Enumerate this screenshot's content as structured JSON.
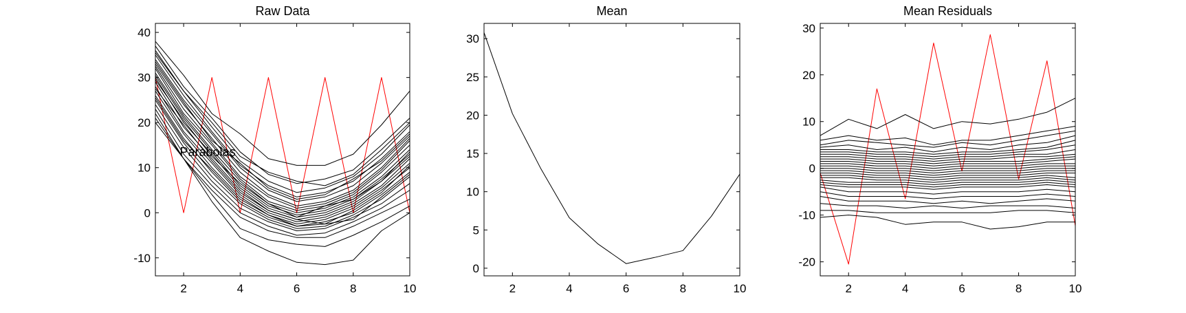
{
  "chart_data": [
    {
      "type": "line",
      "title": "Raw Data",
      "xlim": [
        1,
        10
      ],
      "ylim": [
        -14,
        42
      ],
      "xticks": [
        2,
        4,
        6,
        8,
        10
      ],
      "yticks": [
        -10,
        0,
        10,
        20,
        30,
        40
      ],
      "grid": false,
      "annotations": [
        {
          "text": "Parabolas",
          "x": 2.85,
          "y": 13.5
        }
      ],
      "x": [
        1,
        2,
        3,
        4,
        5,
        6,
        7,
        8,
        9,
        10
      ],
      "series": [
        {
          "color": "#ff0000",
          "values": [
            30,
            0,
            30,
            0,
            30,
            0,
            30,
            0,
            30,
            0
          ]
        },
        {
          "color": "#000000",
          "values": [
            38,
            30.5,
            22,
            17.5,
            12,
            10.5,
            10.5,
            13,
            19.5,
            27
          ]
        },
        {
          "color": "#000000",
          "values": [
            37,
            28,
            21,
            13.5,
            8.5,
            6.5,
            7.5,
            9.5,
            15,
            21
          ]
        },
        {
          "color": "#000000",
          "values": [
            36,
            27,
            19,
            11.5,
            7,
            4.5,
            5.5,
            8,
            13,
            19.5
          ]
        },
        {
          "color": "#000000",
          "values": [
            35,
            26,
            18,
            10.5,
            6,
            3.5,
            4.5,
            7,
            12,
            18
          ]
        },
        {
          "color": "#000000",
          "values": [
            34,
            25,
            17.5,
            10,
            5,
            2.5,
            3.5,
            6,
            11,
            17
          ]
        },
        {
          "color": "#000000",
          "values": [
            33,
            24,
            16.5,
            9,
            4,
            1.5,
            2.5,
            5,
            10,
            16.5
          ]
        },
        {
          "color": "#000000",
          "values": [
            32.5,
            23,
            15.5,
            8,
            3.5,
            1,
            2,
            4.5,
            9.5,
            16
          ]
        },
        {
          "color": "#000000",
          "values": [
            32,
            22,
            15,
            7.5,
            2.5,
            0.5,
            1.5,
            4,
            9,
            15
          ]
        },
        {
          "color": "#000000",
          "values": [
            31,
            21.5,
            14,
            7,
            2,
            0,
            1,
            3.5,
            8,
            14
          ]
        },
        {
          "color": "#000000",
          "values": [
            30.5,
            21,
            13.5,
            6,
            1.5,
            -0.5,
            0.5,
            3,
            7.5,
            13
          ]
        },
        {
          "color": "#000000",
          "values": [
            30,
            20,
            13,
            5.5,
            1,
            -1,
            0,
            2.5,
            7,
            12.5
          ]
        },
        {
          "color": "#000000",
          "values": [
            29,
            19,
            12,
            5,
            0.5,
            -1.5,
            -0.5,
            2,
            6,
            12
          ]
        },
        {
          "color": "#000000",
          "values": [
            28,
            18,
            11,
            4,
            0,
            -2,
            -1,
            1.5,
            5.5,
            11
          ]
        },
        {
          "color": "#000000",
          "values": [
            27,
            17.5,
            10,
            3.5,
            -0.5,
            -2.5,
            -1.5,
            1,
            5,
            10
          ]
        },
        {
          "color": "#000000",
          "values": [
            26,
            16.5,
            9,
            2.5,
            -1,
            -3,
            -2,
            0,
            4,
            9
          ]
        },
        {
          "color": "#000000",
          "values": [
            25,
            15.5,
            8,
            2,
            -1.5,
            -3.5,
            -3,
            -0.5,
            3,
            8
          ]
        },
        {
          "color": "#000000",
          "values": [
            24,
            14.5,
            7,
            1,
            -2,
            -4,
            -3.5,
            -1,
            2,
            6.5
          ]
        },
        {
          "color": "#000000",
          "values": [
            23,
            13,
            6,
            0,
            -3,
            -5,
            -4.5,
            -2,
            1,
            5
          ]
        },
        {
          "color": "#000000",
          "values": [
            22,
            12,
            5,
            -1,
            -4,
            -5.5,
            -5.5,
            -3,
            0,
            3
          ]
        },
        {
          "color": "#000000",
          "values": [
            21,
            12,
            4,
            -3.5,
            -6,
            -7,
            -7.5,
            -5,
            -2,
            1.5
          ]
        },
        {
          "color": "#000000",
          "values": [
            20,
            12,
            2.5,
            -5.5,
            -8.5,
            -11,
            -11.5,
            -10.5,
            -4,
            0
          ]
        },
        {
          "color": "#000000",
          "values": [
            35.5,
            27,
            20,
            12.5,
            9,
            7,
            6,
            8.5,
            14,
            20
          ]
        },
        {
          "color": "#000000",
          "values": [
            33.5,
            24.5,
            16,
            11,
            5.5,
            3,
            4,
            7.5,
            11.5,
            17.5
          ]
        },
        {
          "color": "#000000",
          "values": [
            29.5,
            20.5,
            12.5,
            6.5,
            2,
            -1,
            1.5,
            3,
            7,
            13.5
          ]
        },
        {
          "color": "#000000",
          "values": [
            27.5,
            19.5,
            11.5,
            4.5,
            0.5,
            -1.5,
            -2.5,
            0.5,
            4.5,
            10.5
          ]
        },
        {
          "color": "#000000",
          "values": [
            25.5,
            16,
            9.5,
            3,
            -0.5,
            -3,
            -2.5,
            -1.5,
            3.5,
            8.5
          ]
        }
      ]
    },
    {
      "type": "line",
      "title": "Mean",
      "xlim": [
        1,
        10
      ],
      "ylim": [
        -1,
        32
      ],
      "xticks": [
        2,
        4,
        6,
        8,
        10
      ],
      "yticks": [
        0,
        5,
        10,
        15,
        20,
        25,
        30
      ],
      "grid": false,
      "x": [
        1,
        2,
        3,
        4,
        5,
        6,
        7,
        8,
        9,
        10
      ],
      "series": [
        {
          "color": "#000000",
          "values": [
            30.8,
            20.2,
            13,
            6.6,
            3.2,
            0.6,
            1.4,
            2.3,
            6.8,
            12.3
          ]
        }
      ]
    },
    {
      "type": "line",
      "title": "Mean Residuals",
      "xlim": [
        1,
        10
      ],
      "ylim": [
        -23,
        31
      ],
      "xticks": [
        2,
        4,
        6,
        8,
        10
      ],
      "yticks": [
        -20,
        -10,
        0,
        10,
        20,
        30
      ],
      "grid": false,
      "x": [
        1,
        2,
        3,
        4,
        5,
        6,
        7,
        8,
        9,
        10
      ],
      "series": [
        {
          "color": "#ff0000",
          "values": [
            -1,
            -20.5,
            17,
            -6.5,
            26.8,
            -0.6,
            28.6,
            -2.3,
            23,
            -12.3
          ]
        },
        {
          "color": "#000000",
          "values": [
            7,
            10.5,
            8.5,
            11.5,
            8.5,
            10,
            9.5,
            10.5,
            12,
            15
          ]
        },
        {
          "color": "#000000",
          "values": [
            6,
            7,
            6,
            6.5,
            5,
            6,
            6,
            7,
            8,
            9
          ]
        },
        {
          "color": "#000000",
          "values": [
            5,
            6,
            5.5,
            5,
            4.5,
            5.5,
            5,
            6,
            7,
            8
          ]
        },
        {
          "color": "#000000",
          "values": [
            4.5,
            5,
            4,
            4.5,
            3.5,
            4.5,
            4,
            5,
            5.5,
            7
          ]
        },
        {
          "color": "#000000",
          "values": [
            4,
            4,
            3.5,
            3.5,
            3,
            3.5,
            3.5,
            4,
            4.5,
            6
          ]
        },
        {
          "color": "#000000",
          "values": [
            3.5,
            3.5,
            3,
            3,
            2.5,
            3,
            3,
            3.5,
            4,
            5
          ]
        },
        {
          "color": "#000000",
          "values": [
            3,
            3,
            2.5,
            2.5,
            2,
            2.5,
            2.5,
            3,
            3,
            4
          ]
        },
        {
          "color": "#000000",
          "values": [
            2.5,
            2.5,
            2,
            2,
            1.5,
            2,
            2,
            2.5,
            2.5,
            3
          ]
        },
        {
          "color": "#000000",
          "values": [
            2,
            2,
            1.5,
            1.5,
            1,
            1.5,
            1.5,
            1.5,
            2,
            2.5
          ]
        },
        {
          "color": "#000000",
          "values": [
            1.5,
            1.5,
            1,
            1,
            0.5,
            1,
            1,
            1,
            1.5,
            2
          ]
        },
        {
          "color": "#000000",
          "values": [
            1,
            1,
            0.5,
            0.5,
            0,
            0.5,
            0.5,
            0.5,
            1,
            1
          ]
        },
        {
          "color": "#000000",
          "values": [
            0.5,
            0.5,
            0,
            0,
            -0.5,
            0,
            0,
            0,
            0.5,
            0.5
          ]
        },
        {
          "color": "#000000",
          "values": [
            0,
            0,
            -0.5,
            -0.5,
            -1,
            -0.5,
            -0.5,
            -0.5,
            0,
            0
          ]
        },
        {
          "color": "#000000",
          "values": [
            -0.5,
            -0.5,
            -1,
            -1,
            -1.5,
            -1,
            -1,
            -1,
            -0.5,
            -0.5
          ]
        },
        {
          "color": "#000000",
          "values": [
            -1,
            -1,
            -1.5,
            -1.5,
            -2,
            -1.5,
            -1.5,
            -1.5,
            -1,
            -1
          ]
        },
        {
          "color": "#000000",
          "values": [
            -1.5,
            -1.5,
            -2,
            -2,
            -2.5,
            -2,
            -2,
            -2,
            -1.5,
            -2
          ]
        },
        {
          "color": "#000000",
          "values": [
            -2,
            -2,
            -2.5,
            -2.5,
            -3,
            -2.5,
            -2.5,
            -2.5,
            -2,
            -2.5
          ]
        },
        {
          "color": "#000000",
          "values": [
            -2.5,
            -3,
            -3,
            -3,
            -3.5,
            -3,
            -3,
            -3,
            -2.5,
            -3
          ]
        },
        {
          "color": "#000000",
          "values": [
            -3,
            -3.5,
            -3.5,
            -3.5,
            -4,
            -3.5,
            -3.5,
            -3.5,
            -3,
            -3.5
          ]
        },
        {
          "color": "#000000",
          "values": [
            -3.5,
            -4,
            -4,
            -4,
            -4.5,
            -4,
            -4,
            -4,
            -3.5,
            -4
          ]
        },
        {
          "color": "#000000",
          "values": [
            -4,
            -5,
            -5,
            -5,
            -5.5,
            -5,
            -5,
            -5,
            -4.5,
            -5
          ]
        },
        {
          "color": "#000000",
          "values": [
            -5,
            -6,
            -6,
            -6,
            -6.5,
            -6,
            -6,
            -6,
            -5.5,
            -6
          ]
        },
        {
          "color": "#000000",
          "values": [
            -6,
            -7,
            -7,
            -7,
            -7.5,
            -7,
            -7.5,
            -7,
            -6.5,
            -7
          ]
        },
        {
          "color": "#000000",
          "values": [
            -7.5,
            -8,
            -8,
            -8.5,
            -8,
            -8.5,
            -8,
            -8,
            -8,
            -8.5
          ]
        },
        {
          "color": "#000000",
          "values": [
            -9,
            -9,
            -9.5,
            -9.5,
            -9.5,
            -9.5,
            -9.5,
            -9,
            -9,
            -9.5
          ]
        },
        {
          "color": "#000000",
          "values": [
            -10.5,
            -10,
            -10.5,
            -12,
            -11.5,
            -11.5,
            -13,
            -12.5,
            -11.5,
            -11.5
          ]
        }
      ]
    }
  ]
}
